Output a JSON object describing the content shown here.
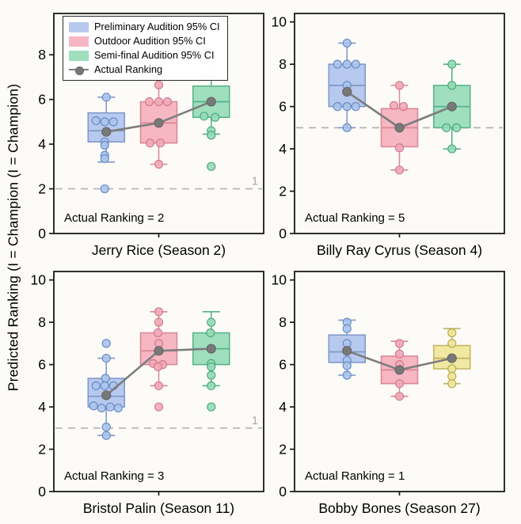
{
  "figure": {
    "ylabel": "Predicted Ranking (I = Champion (I = Champion)",
    "background": "#fcfbf8"
  },
  "legend": {
    "items": [
      {
        "label": "Preliminary Audition 95% CI",
        "color_key": "blue"
      },
      {
        "label": "Outdoor Audition 95% CI",
        "color_key": "pink"
      },
      {
        "label": "Semi-final Audition 95% CI",
        "color_key": "green"
      },
      {
        "label": "Actual Ranking",
        "color_key": "actual"
      }
    ]
  },
  "colors": {
    "blue": {
      "fill": "#b7c9ee",
      "stroke": "#7e97c8",
      "point_fill": "#abc4eb",
      "point_stroke": "#6a8cc7"
    },
    "pink": {
      "fill": "#f6b6c2",
      "stroke": "#d98696",
      "point_fill": "#f3a9b8",
      "point_stroke": "#d07d8d"
    },
    "green": {
      "fill": "#9fdfbe",
      "stroke": "#55b189",
      "point_fill": "#93dcb6",
      "point_stroke": "#4daa80"
    },
    "yellow": {
      "fill": "#f1e8a2",
      "stroke": "#c0b45e",
      "point_fill": "#efe598",
      "point_stroke": "#b8ab50"
    },
    "actual": {
      "line": "#7d7d7d",
      "dot_fill": "#787878",
      "dot_stroke": "#646464"
    },
    "dashed_line": "#b3b3b3",
    "dashed_label": "#a6a6a6",
    "axis": "#1a1a1a"
  },
  "chart_data": [
    {
      "type": "box",
      "title": "Jerry Rice (Season 2)",
      "annotation": "Actual Ranking = 2",
      "actual_ranking": 2,
      "ylim": [
        0,
        9.85
      ],
      "yticks": [
        0,
        2,
        4,
        6,
        8
      ],
      "dashed_line": {
        "y": 2,
        "label": "1"
      },
      "actual_ranking_series": [
        4.55,
        4.95,
        5.9
      ],
      "boxes": [
        {
          "audition": "Preliminary",
          "color": "blue",
          "q1": 4.1,
          "median": 4.6,
          "q3": 5.4,
          "whisker_low": 3.2,
          "whisker_high": 6.1,
          "points": [
            {
              "y": 6.1,
              "dx": 0
            },
            {
              "y": 5.05,
              "dx": -13
            },
            {
              "y": 5.0,
              "dx": -2
            },
            {
              "y": 5.0,
              "dx": 9
            },
            {
              "y": 4.1,
              "dx": -2
            },
            {
              "y": 3.95,
              "dx": -2
            },
            {
              "y": 3.5,
              "dx": -2
            },
            {
              "y": 3.35,
              "dx": -2
            },
            {
              "y": 2.0,
              "dx": -2
            }
          ]
        },
        {
          "audition": "Outdoor",
          "color": "pink",
          "q1": 4.05,
          "median": 4.95,
          "q3": 5.9,
          "whisker_low": 3.1,
          "whisker_high": 6.9,
          "points": [
            {
              "y": 6.65,
              "dx": 0
            },
            {
              "y": 5.9,
              "dx": -12
            },
            {
              "y": 5.9,
              "dx": 0
            },
            {
              "y": 5.9,
              "dx": 11
            },
            {
              "y": 4.05,
              "dx": -11
            },
            {
              "y": 4.05,
              "dx": 2
            },
            {
              "y": 3.1,
              "dx": 0
            }
          ]
        },
        {
          "audition": "Semi-final",
          "color": "green",
          "q1": 5.2,
          "median": 5.9,
          "q3": 6.6,
          "whisker_low": 4.45,
          "whisker_high": 7.1,
          "points": [
            {
              "y": 8.0,
              "dx": 0
            },
            {
              "y": 7.1,
              "dx": 0
            },
            {
              "y": 5.25,
              "dx": -9
            },
            {
              "y": 5.2,
              "dx": 5
            },
            {
              "y": 4.6,
              "dx": 0
            },
            {
              "y": 4.4,
              "dx": 0
            },
            {
              "y": 3.0,
              "dx": 0
            }
          ]
        }
      ]
    },
    {
      "type": "box",
      "title": "Billy Ray Cyrus (Season 4)",
      "annotation": "Actual Ranking = 5",
      "actual_ranking": 5,
      "ylim": [
        0,
        10.4
      ],
      "yticks": [
        0,
        2,
        4,
        6,
        8,
        10
      ],
      "dashed_line": {
        "y": 5,
        "label": ""
      },
      "actual_ranking_series": [
        6.7,
        5.0,
        6.0
      ],
      "boxes": [
        {
          "audition": "Preliminary",
          "color": "blue",
          "q1": 6.0,
          "median": 7.0,
          "q3": 8.0,
          "whisker_low": 5.0,
          "whisker_high": 9.0,
          "points": [
            {
              "y": 9.0,
              "dx": 0
            },
            {
              "y": 8.0,
              "dx": -12
            },
            {
              "y": 8.0,
              "dx": 0
            },
            {
              "y": 8.0,
              "dx": 11
            },
            {
              "y": 7.0,
              "dx": 0
            },
            {
              "y": 6.0,
              "dx": -12
            },
            {
              "y": 6.0,
              "dx": 0
            },
            {
              "y": 6.0,
              "dx": 11
            },
            {
              "y": 5.0,
              "dx": 0
            }
          ]
        },
        {
          "audition": "Outdoor",
          "color": "pink",
          "q1": 4.1,
          "median": 5.0,
          "q3": 5.9,
          "whisker_low": 3.0,
          "whisker_high": 7.0,
          "points": [
            {
              "y": 7.0,
              "dx": 0
            },
            {
              "y": 6.05,
              "dx": -7
            },
            {
              "y": 6.0,
              "dx": 5
            },
            {
              "y": 4.05,
              "dx": 0
            },
            {
              "y": 3.0,
              "dx": 0
            }
          ]
        },
        {
          "audition": "Semi-final",
          "color": "green",
          "q1": 5.0,
          "median": 6.0,
          "q3": 7.0,
          "whisker_low": 4.0,
          "whisker_high": 8.0,
          "points": [
            {
              "y": 8.0,
              "dx": 0
            },
            {
              "y": 7.0,
              "dx": 0
            },
            {
              "y": 5.0,
              "dx": -7
            },
            {
              "y": 5.0,
              "dx": 6
            },
            {
              "y": 4.0,
              "dx": 0
            }
          ]
        }
      ]
    },
    {
      "type": "box",
      "title": "Bristol Palin (Season 11)",
      "annotation": "Actual Ranking = 3",
      "actual_ranking": 3,
      "ylim": [
        0,
        10.4
      ],
      "yticks": [
        0,
        2,
        4,
        6,
        8,
        10
      ],
      "dashed_line": {
        "y": 3,
        "label": "1"
      },
      "actual_ranking_series": [
        4.55,
        6.65,
        6.75
      ],
      "boxes": [
        {
          "audition": "Preliminary",
          "color": "blue",
          "q1": 4.0,
          "median": 4.5,
          "q3": 5.35,
          "whisker_low": 2.65,
          "whisker_high": 6.3,
          "points": [
            {
              "y": 7.0,
              "dx": 0
            },
            {
              "y": 6.3,
              "dx": 0
            },
            {
              "y": 5.35,
              "dx": -1
            },
            {
              "y": 5.0,
              "dx": -13
            },
            {
              "y": 5.0,
              "dx": -2
            },
            {
              "y": 5.0,
              "dx": 9
            },
            {
              "y": 4.05,
              "dx": -16
            },
            {
              "y": 3.95,
              "dx": -6
            },
            {
              "y": 4.0,
              "dx": 5
            },
            {
              "y": 3.95,
              "dx": 15
            },
            {
              "y": 3.05,
              "dx": 0
            },
            {
              "y": 2.65,
              "dx": 0
            }
          ]
        },
        {
          "audition": "Outdoor",
          "color": "pink",
          "q1": 6.0,
          "median": 6.65,
          "q3": 7.5,
          "whisker_low": 5.0,
          "whisker_high": 8.5,
          "points": [
            {
              "y": 8.5,
              "dx": 0
            },
            {
              "y": 8.0,
              "dx": 0
            },
            {
              "y": 7.5,
              "dx": -1
            },
            {
              "y": 7.0,
              "dx": 0
            },
            {
              "y": 6.05,
              "dx": -7
            },
            {
              "y": 6.0,
              "dx": 5
            },
            {
              "y": 5.9,
              "dx": -1
            },
            {
              "y": 5.0,
              "dx": 0
            },
            {
              "y": 4.0,
              "dx": 0
            }
          ]
        },
        {
          "audition": "Semi-final",
          "color": "green",
          "q1": 6.0,
          "median": 6.75,
          "q3": 7.5,
          "whisker_low": 5.0,
          "whisker_high": 8.5,
          "points": [
            {
              "y": 8.0,
              "dx": 0
            },
            {
              "y": 7.5,
              "dx": -1
            },
            {
              "y": 6.05,
              "dx": 0
            },
            {
              "y": 5.9,
              "dx": 0
            },
            {
              "y": 5.5,
              "dx": 0
            },
            {
              "y": 5.0,
              "dx": 0
            },
            {
              "y": 4.0,
              "dx": 0
            }
          ]
        }
      ]
    },
    {
      "type": "box",
      "title": "Bobby Bones (Season 27)",
      "annotation": "Actual Ranking = 1",
      "actual_ranking": 1,
      "ylim": [
        0,
        10.4
      ],
      "yticks": [
        0,
        2,
        4,
        6,
        8,
        10
      ],
      "dashed_line": null,
      "actual_ranking_series": [
        6.65,
        5.75,
        6.3
      ],
      "boxes": [
        {
          "audition": "Preliminary",
          "color": "blue",
          "q1": 6.1,
          "median": 6.6,
          "q3": 7.4,
          "whisker_low": 5.5,
          "whisker_high": 8.1,
          "points": [
            {
              "y": 8.0,
              "dx": 0
            },
            {
              "y": 7.7,
              "dx": 0
            },
            {
              "y": 7.0,
              "dx": 0
            },
            {
              "y": 6.2,
              "dx": 0
            },
            {
              "y": 5.95,
              "dx": 0
            },
            {
              "y": 5.5,
              "dx": 0
            }
          ]
        },
        {
          "audition": "Outdoor",
          "color": "pink",
          "q1": 5.1,
          "median": 5.75,
          "q3": 6.4,
          "whisker_low": 4.5,
          "whisker_high": 7.1,
          "points": [
            {
              "y": 7.0,
              "dx": 0
            },
            {
              "y": 6.5,
              "dx": 0
            },
            {
              "y": 6.0,
              "dx": 0
            },
            {
              "y": 5.1,
              "dx": 0
            },
            {
              "y": 4.5,
              "dx": 0
            }
          ]
        },
        {
          "audition": "Semi-final",
          "color": "yellow",
          "q1": 5.8,
          "median": 6.3,
          "q3": 6.9,
          "whisker_low": 5.1,
          "whisker_high": 7.7,
          "points": [
            {
              "y": 7.5,
              "dx": 0
            },
            {
              "y": 7.0,
              "dx": 0
            },
            {
              "y": 5.8,
              "dx": 0
            },
            {
              "y": 5.45,
              "dx": 0
            },
            {
              "y": 5.1,
              "dx": 0
            }
          ]
        }
      ]
    }
  ]
}
